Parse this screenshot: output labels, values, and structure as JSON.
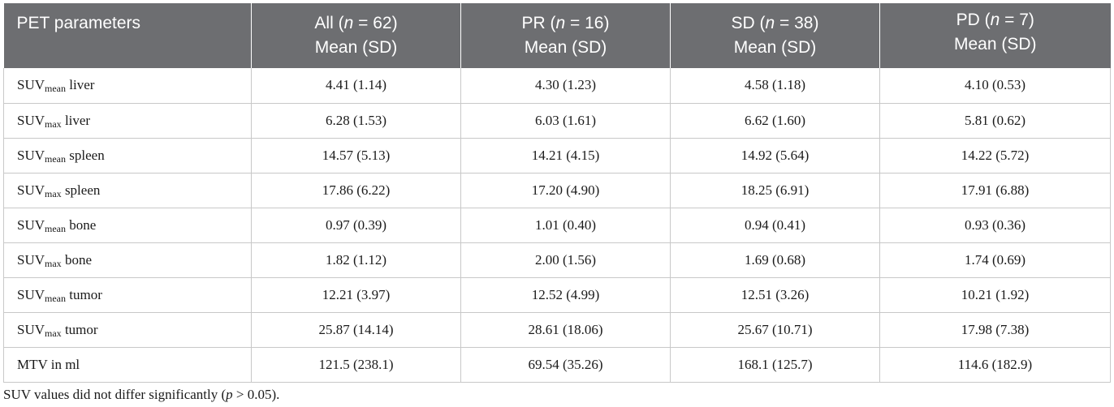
{
  "table": {
    "header": {
      "param": "PET parameters",
      "columns": [
        {
          "group": "All",
          "n_label": "n",
          "n_value": "= 62",
          "stat": "Mean (SD)"
        },
        {
          "group": "PR",
          "n_label": "n",
          "n_value": "= 16",
          "stat": "Mean (SD)"
        },
        {
          "group": "SD",
          "n_label": "n",
          "n_value": "= 38",
          "stat": "Mean (SD)"
        },
        {
          "group": "PD",
          "n_label": "n",
          "n_value": "= 7",
          "stat": "Mean (SD)"
        }
      ]
    },
    "rows": [
      {
        "base": "SUV",
        "sub": "mean",
        "suffix": " liver",
        "values": [
          "4.41 (1.14)",
          "4.30 (1.23)",
          "4.58 (1.18)",
          "4.10 (0.53)"
        ]
      },
      {
        "base": "SUV",
        "sub": "max",
        "suffix": " liver",
        "values": [
          "6.28 (1.53)",
          "6.03 (1.61)",
          "6.62 (1.60)",
          "5.81 (0.62)"
        ]
      },
      {
        "base": "SUV",
        "sub": "mean",
        "suffix": " spleen",
        "values": [
          "14.57 (5.13)",
          "14.21 (4.15)",
          "14.92 (5.64)",
          "14.22 (5.72)"
        ]
      },
      {
        "base": "SUV",
        "sub": "max",
        "suffix": " spleen",
        "values": [
          "17.86 (6.22)",
          "17.20 (4.90)",
          "18.25 (6.91)",
          "17.91 (6.88)"
        ]
      },
      {
        "base": "SUV",
        "sub": "mean",
        "suffix": " bone",
        "values": [
          "0.97 (0.39)",
          "1.01 (0.40)",
          "0.94 (0.41)",
          "0.93 (0.36)"
        ]
      },
      {
        "base": "SUV",
        "sub": "max",
        "suffix": " bone",
        "values": [
          "1.82 (1.12)",
          "2.00 (1.56)",
          "1.69 (0.68)",
          "1.74 (0.69)"
        ]
      },
      {
        "base": "SUV",
        "sub": "mean",
        "suffix": " tumor",
        "values": [
          "12.21 (3.97)",
          "12.52 (4.99)",
          "12.51 (3.26)",
          "10.21 (1.92)"
        ]
      },
      {
        "base": "SUV",
        "sub": "max",
        "suffix": " tumor",
        "values": [
          "25.87 (14.14)",
          "28.61 (18.06)",
          "25.67 (10.71)",
          "17.98 (7.38)"
        ]
      },
      {
        "base": "MTV in ml",
        "sub": "",
        "suffix": "",
        "values": [
          "121.5 (238.1)",
          "69.54 (35.26)",
          "168.1 (125.7)",
          "114.6 (182.9)"
        ]
      }
    ]
  },
  "footnote": {
    "before": "SUV values did not differ significantly (",
    "italic": "p",
    "after": " > 0.05)."
  },
  "colors": {
    "header_bg": "#6d6e71",
    "header_text": "#ffffff",
    "grid": "#c8c8c8"
  }
}
